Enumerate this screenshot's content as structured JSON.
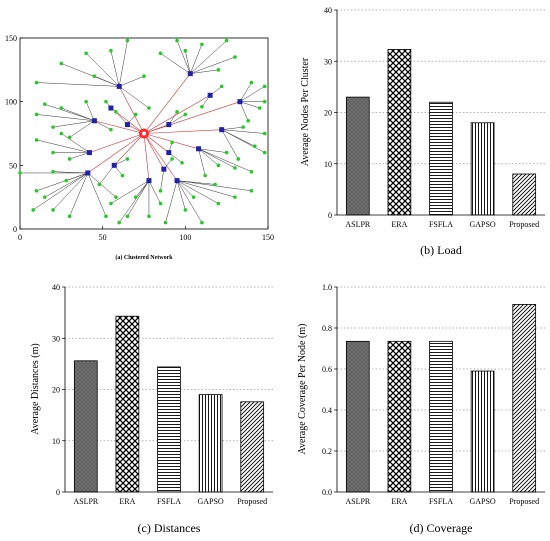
{
  "chart_data": [
    {
      "type": "scatter",
      "caption": "(a) Clustered Network",
      "xlim": [
        0,
        150
      ],
      "ylim": [
        0,
        150
      ],
      "x_ticks": [
        0,
        50,
        100,
        150
      ],
      "y_ticks": [
        0,
        50,
        100,
        150
      ],
      "grid": false,
      "sink": [
        75,
        75
      ],
      "sink_color": "#ff2a2a",
      "head_color": "#2020aa",
      "node_color": "#22cc22",
      "link_color": "#333333",
      "head_link_color": "#cc3333",
      "clusters": [
        {
          "head": [
            60,
            112
          ],
          "members": [
            [
              10,
              115
            ],
            [
              25,
              130
            ],
            [
              40,
              138
            ],
            [
              55,
              140
            ],
            [
              65,
              148
            ],
            [
              75,
              120
            ],
            [
              78,
              95
            ],
            [
              45,
              120
            ]
          ]
        },
        {
          "head": [
            45,
            85
          ],
          "members": [
            [
              15,
              98
            ],
            [
              25,
              95
            ],
            [
              20,
              80
            ],
            [
              30,
              72
            ],
            [
              40,
              100
            ],
            [
              55,
              78
            ],
            [
              10,
              90
            ]
          ]
        },
        {
          "head": [
            103,
            122
          ],
          "members": [
            [
              95,
              148
            ],
            [
              110,
              145
            ],
            [
              125,
              148
            ],
            [
              85,
              138
            ],
            [
              120,
              125
            ],
            [
              130,
              135
            ],
            [
              100,
              140
            ]
          ]
        },
        {
          "head": [
            133,
            100
          ],
          "members": [
            [
              148,
              112
            ],
            [
              145,
              95
            ],
            [
              138,
              85
            ],
            [
              140,
              115
            ],
            [
              148,
              100
            ]
          ]
        },
        {
          "head": [
            122,
            78
          ],
          "members": [
            [
              135,
              80
            ],
            [
              148,
              75
            ],
            [
              142,
              65
            ],
            [
              132,
              55
            ],
            [
              148,
              60
            ]
          ]
        },
        {
          "head": [
            108,
            63
          ],
          "members": [
            [
              125,
              60
            ],
            [
              130,
              48
            ],
            [
              120,
              50
            ],
            [
              112,
              42
            ],
            [
              140,
              45
            ]
          ]
        },
        {
          "head": [
            42,
            60
          ],
          "members": [
            [
              10,
              70
            ],
            [
              20,
              60
            ],
            [
              30,
              55
            ],
            [
              25,
              75
            ]
          ]
        },
        {
          "head": [
            41,
            44
          ],
          "members": [
            [
              0,
              44
            ],
            [
              10,
              30
            ],
            [
              15,
              25
            ],
            [
              8,
              15
            ],
            [
              20,
              15
            ],
            [
              30,
              10
            ],
            [
              28,
              38
            ],
            [
              52,
              10
            ],
            [
              58,
              25
            ],
            [
              20,
              45
            ]
          ]
        },
        {
          "head": [
            78,
            38
          ],
          "members": [
            [
              55,
              20
            ],
            [
              65,
              10
            ],
            [
              70,
              25
            ],
            [
              78,
              10
            ],
            [
              85,
              20
            ],
            [
              60,
              5
            ]
          ]
        },
        {
          "head": [
            95,
            38
          ],
          "members": [
            [
              100,
              15
            ],
            [
              110,
              5
            ],
            [
              120,
              20
            ],
            [
              130,
              25
            ],
            [
              140,
              30
            ],
            [
              88,
              5
            ],
            [
              105,
              25
            ],
            [
              118,
              35
            ]
          ]
        },
        {
          "head": [
            57,
            50
          ],
          "members": [
            [
              48,
              35
            ],
            [
              62,
              42
            ],
            [
              65,
              55
            ]
          ]
        },
        {
          "head": [
            87,
            47
          ],
          "members": [
            [
              85,
              30
            ],
            [
              92,
              55
            ]
          ]
        },
        {
          "head": [
            90,
            60
          ],
          "members": [
            [
              98,
              52
            ],
            [
              92,
              68
            ]
          ]
        },
        {
          "head": [
            65,
            82
          ],
          "members": [
            [
              58,
              92
            ],
            [
              70,
              90
            ]
          ]
        },
        {
          "head": [
            90,
            82
          ],
          "members": [
            [
              100,
              90
            ],
            [
              95,
              92
            ]
          ]
        },
        {
          "head": [
            115,
            105
          ],
          "members": [
            [
              122,
              112
            ],
            [
              110,
              96
            ]
          ]
        },
        {
          "head": [
            55,
            95
          ],
          "members": [
            [
              52,
              100
            ]
          ]
        }
      ]
    },
    {
      "type": "bar",
      "caption": "(b) Load",
      "ylabel": "Average Nodes Per Cluster",
      "categories": [
        "ASLPR",
        "ERA",
        "FSFLA",
        "GAPSO",
        "Proposed"
      ],
      "values": [
        23,
        32.3,
        22,
        18,
        8
      ],
      "ylim": [
        0,
        40
      ],
      "y_ticks": [
        0,
        10,
        20,
        30,
        40
      ],
      "grid": "horizontal-dotted"
    },
    {
      "type": "bar",
      "caption": "(c) Distances",
      "ylabel": "Average Distances (m)",
      "categories": [
        "ASLPR",
        "ERA",
        "FSFLA",
        "GAPSO",
        "Proposed"
      ],
      "values": [
        25.6,
        34.3,
        24.4,
        19,
        17.6
      ],
      "ylim": [
        0,
        40
      ],
      "y_ticks": [
        0,
        10,
        20,
        30,
        40
      ],
      "grid": "horizontal-dotted"
    },
    {
      "type": "bar",
      "caption": "(d) Coverage",
      "ylabel": "Average Coverage Per Node (m)",
      "categories": [
        "ASLPR",
        "ERA",
        "FSFLA",
        "GAPSO",
        "Proposed"
      ],
      "values": [
        0.735,
        0.735,
        0.735,
        0.59,
        0.915
      ],
      "ylim": [
        0,
        1.0
      ],
      "y_ticks": [
        "0.0",
        "0.2",
        "0.4",
        "0.6",
        "0.8",
        "1.0"
      ],
      "grid": "horizontal-dotted"
    }
  ]
}
